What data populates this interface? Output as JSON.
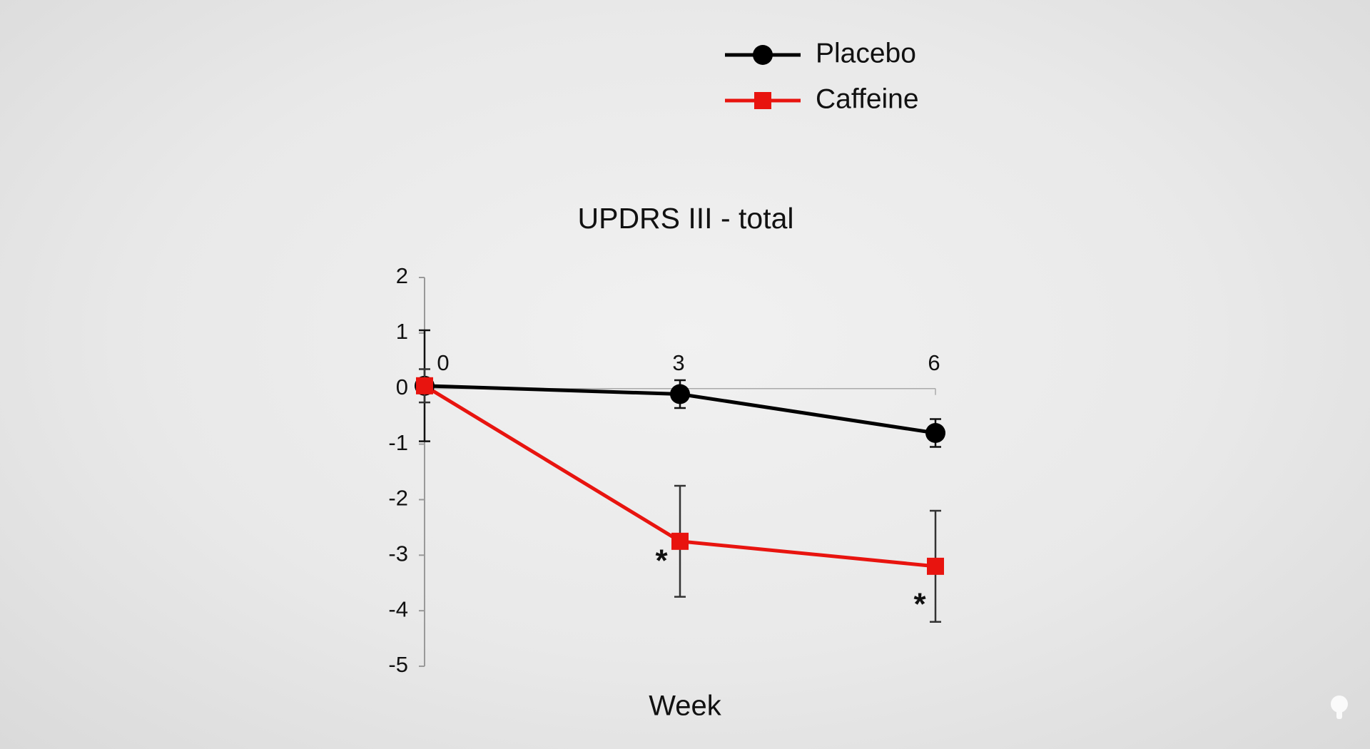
{
  "chart_data": {
    "type": "line",
    "title": "UPDRS III - total",
    "x_label": "Week",
    "x": [
      0,
      3,
      6
    ],
    "xlim": [
      0,
      6
    ],
    "xticks": [
      0,
      3,
      6
    ],
    "ylim": [
      -5,
      2
    ],
    "yticks": [
      -5,
      -4,
      -3,
      -2,
      -1,
      0,
      1,
      2
    ],
    "series": [
      {
        "name": "Placebo",
        "color": "#000000",
        "marker": "circle",
        "values": [
          0.05,
          -0.1,
          -0.8
        ],
        "errors": [
          1,
          0.25,
          0.25
        ]
      },
      {
        "name": "Caffeine",
        "color": "#e8140f",
        "marker": "square",
        "values": [
          0.05,
          -2.75,
          -3.2
        ],
        "errors": [
          0.3,
          1,
          1
        ]
      }
    ],
    "annotations": [
      "*",
      "*"
    ]
  }
}
